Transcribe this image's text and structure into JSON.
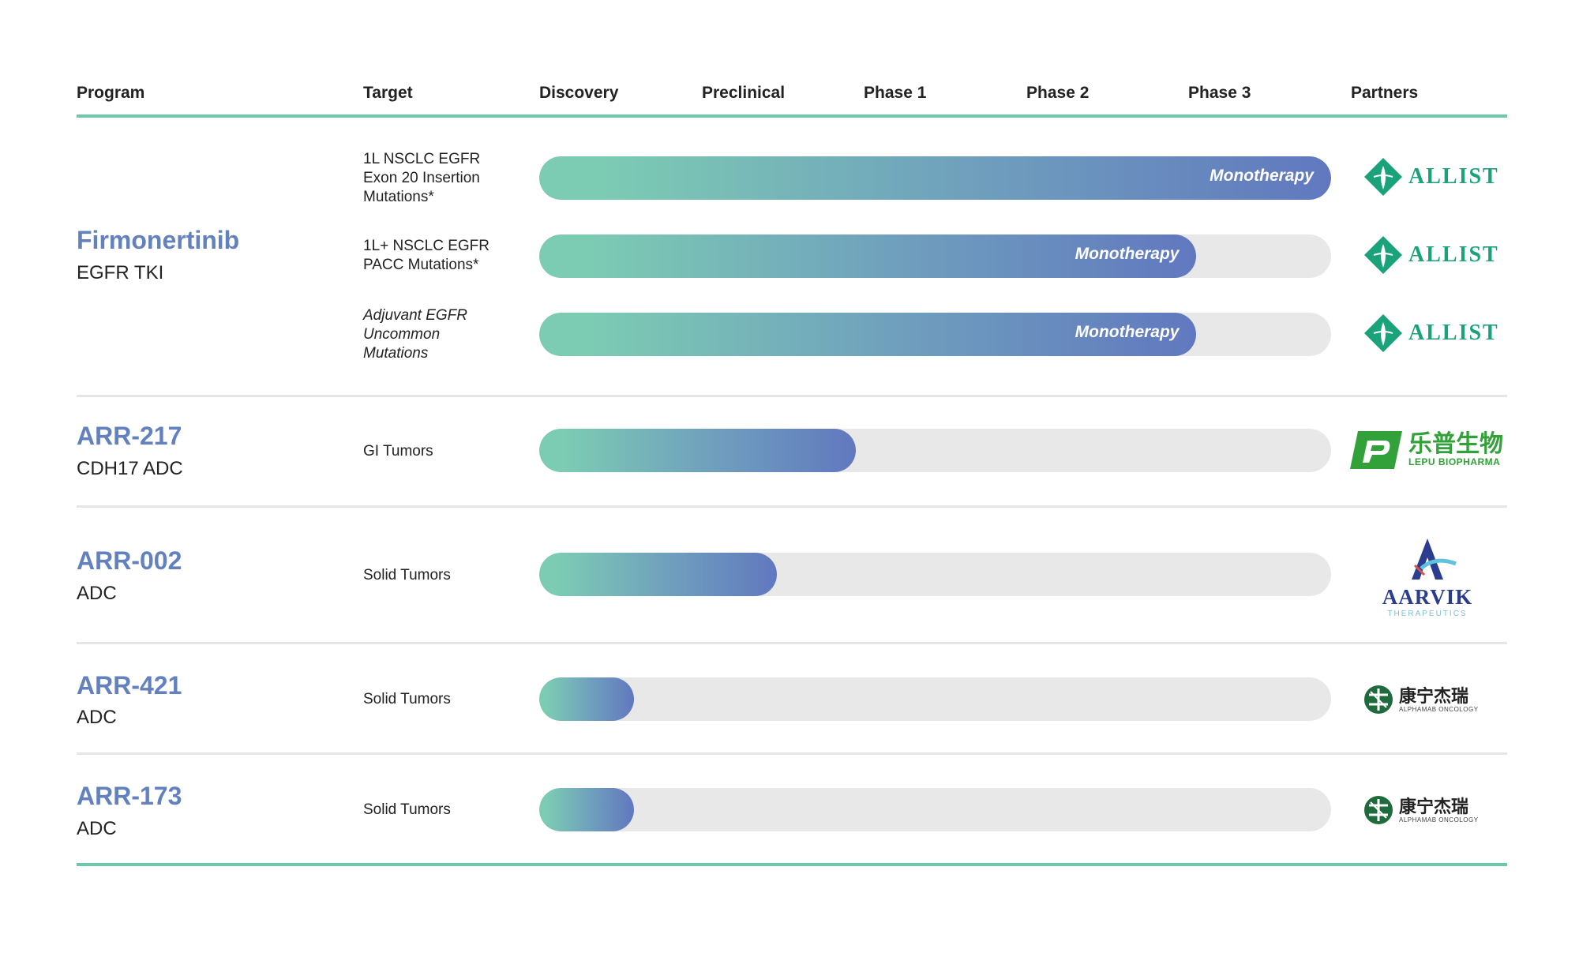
{
  "header": {
    "program": "Program",
    "target": "Target",
    "discovery": "Discovery",
    "preclinical": "Preclinical",
    "phase1": "Phase 1",
    "phase2": "Phase 2",
    "phase3": "Phase 3",
    "partners": "Partners"
  },
  "programs": [
    {
      "name": "Firmonertinib",
      "subtitle": "EGFR TKI",
      "indications": [
        {
          "target": "1L NSCLC EGFR\nExon 20 Insertion\nMutations*",
          "progress": 1.0,
          "label": "Monotherapy",
          "partner": "ALLIST"
        },
        {
          "target": "1L+ NSCLC EGFR\nPACC Mutations*",
          "progress": 0.83,
          "label": "Monotherapy",
          "partner": "ALLIST"
        },
        {
          "target": "Adjuvant EGFR\nUncommon\nMutations",
          "progress": 0.83,
          "label": "Monotherapy",
          "partner": "ALLIST"
        }
      ]
    },
    {
      "name": "ARR-217",
      "subtitle": "CDH17 ADC",
      "indications": [
        {
          "target": "GI Tumors",
          "progress": 0.4,
          "label": "",
          "partner_cn": "乐普生物",
          "partner_en": "LEPU BIOPHARMA"
        }
      ]
    },
    {
      "name": "ARR-002",
      "subtitle": "ADC",
      "indications": [
        {
          "target": "Solid Tumors",
          "progress": 0.3,
          "label": "",
          "partner": "AARVIK",
          "partner_sub": "THERAPEUTICS"
        }
      ]
    },
    {
      "name": "ARR-421",
      "subtitle": "ADC",
      "indications": [
        {
          "target": "Solid Tumors",
          "progress": 0.12,
          "label": "",
          "partner_cn": "康宁杰瑞",
          "partner_en": "ALPHAMAB ONCOLOGY"
        }
      ]
    },
    {
      "name": "ARR-173",
      "subtitle": "ADC",
      "indications": [
        {
          "target": "Solid Tumors",
          "progress": 0.12,
          "label": "",
          "partner_cn": "康宁杰瑞",
          "partner_en": "ALPHAMAB ONCOLOGY"
        }
      ]
    }
  ],
  "colors": {
    "accent": "#6cc9aa",
    "program_name": "#6380bf",
    "bar_start": "#7ccbb3",
    "bar_end": "#6178bf",
    "track": "#e8e8e8",
    "allist": "#1aa37a",
    "lepu": "#32a13a",
    "aarvik": "#2a3d8f"
  }
}
